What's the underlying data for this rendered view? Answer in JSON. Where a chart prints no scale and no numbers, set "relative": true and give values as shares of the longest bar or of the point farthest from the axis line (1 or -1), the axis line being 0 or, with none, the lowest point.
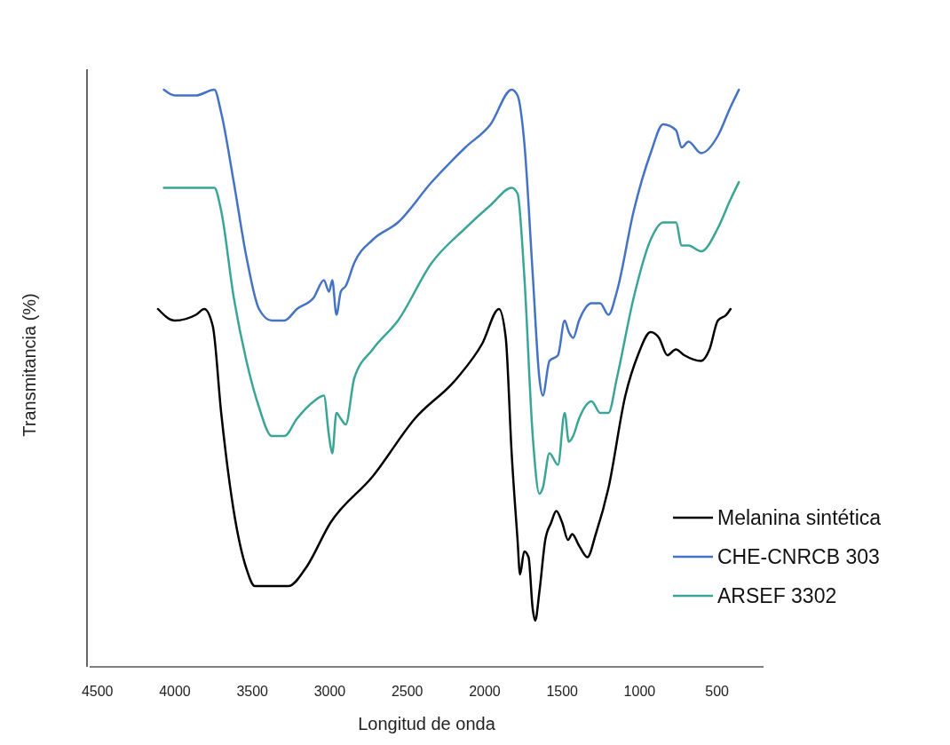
{
  "chart_data": {
    "type": "line",
    "xlabel": "Longitud de onda",
    "ylabel": "Transmitancia (%)",
    "relative": true,
    "xlim": [
      4550,
      200
    ],
    "xticks": [
      4500,
      4000,
      3500,
      3000,
      2500,
      2000,
      1500,
      1000,
      500
    ],
    "grid": false,
    "legend": "bottom right",
    "line_style": "solid",
    "marker": "none",
    "series": [
      {
        "name": "Melanina sintética",
        "color": "#000000",
        "x": [
          4109,
          4000,
          3864,
          3810,
          3755,
          3701,
          3620,
          3538,
          3484,
          3402,
          3321,
          3266,
          3158,
          2995,
          2723,
          2451,
          2179,
          2016,
          1908,
          1864,
          1826,
          1788,
          1772,
          1745,
          1717,
          1690,
          1674,
          1647,
          1609,
          1571,
          1538,
          1500,
          1462,
          1435,
          1391,
          1337,
          1283,
          1201,
          1092,
          1011,
          929,
          875,
          821,
          766,
          712,
          603,
          549,
          495,
          440,
          413
        ],
        "values": [
          0.62,
          0.6,
          0.61,
          0.62,
          0.59,
          0.44,
          0.27,
          0.17,
          0.14,
          0.14,
          0.14,
          0.14,
          0.17,
          0.25,
          0.33,
          0.43,
          0.5,
          0.56,
          0.62,
          0.57,
          0.37,
          0.22,
          0.16,
          0.2,
          0.19,
          0.1,
          0.08,
          0.13,
          0.22,
          0.25,
          0.27,
          0.25,
          0.22,
          0.23,
          0.21,
          0.19,
          0.23,
          0.31,
          0.47,
          0.54,
          0.58,
          0.57,
          0.54,
          0.55,
          0.54,
          0.53,
          0.55,
          0.6,
          0.61,
          0.62
        ]
      },
      {
        "name": "CHE-CNRCB 303",
        "color": "#4472c4",
        "x": [
          4071,
          4000,
          3864,
          3745,
          3701,
          3620,
          3538,
          3457,
          3375,
          3293,
          3212,
          3103,
          3038,
          3005,
          2984,
          2957,
          2929,
          2897,
          2842,
          2723,
          2560,
          2342,
          2125,
          1962,
          1826,
          1788,
          1745,
          1690,
          1647,
          1625,
          1582,
          1527,
          1484,
          1457,
          1429,
          1391,
          1310,
          1255,
          1201,
          1147,
          1038,
          929,
          848,
          766,
          728,
          685,
          603,
          495,
          413,
          359
        ],
        "values": [
          1,
          0.99,
          0.99,
          1,
          0.96,
          0.84,
          0.71,
          0.62,
          0.6,
          0.6,
          0.62,
          0.64,
          0.67,
          0.65,
          0.67,
          0.61,
          0.65,
          0.66,
          0.7,
          0.74,
          0.77,
          0.84,
          0.9,
          0.94,
          1,
          0.99,
          0.91,
          0.68,
          0.5,
          0.47,
          0.53,
          0.54,
          0.6,
          0.58,
          0.57,
          0.6,
          0.63,
          0.63,
          0.61,
          0.65,
          0.79,
          0.89,
          0.94,
          0.93,
          0.9,
          0.91,
          0.89,
          0.92,
          0.97,
          1
        ]
      },
      {
        "name": "ARSEF 3302",
        "color": "#3aa597",
        "x": [
          4071,
          4000,
          3864,
          3745,
          3701,
          3620,
          3538,
          3457,
          3375,
          3293,
          3212,
          3103,
          3038,
          3005,
          2984,
          2957,
          2929,
          2897,
          2842,
          2723,
          2560,
          2342,
          2125,
          1962,
          1826,
          1788,
          1745,
          1690,
          1647,
          1625,
          1582,
          1527,
          1484,
          1457,
          1429,
          1391,
          1310,
          1255,
          1201,
          1147,
          1038,
          929,
          848,
          766,
          728,
          685,
          603,
          495,
          413,
          359
        ],
        "values": [
          0.83,
          0.83,
          0.83,
          0.83,
          0.79,
          0.64,
          0.53,
          0.45,
          0.4,
          0.4,
          0.43,
          0.46,
          0.47,
          0.4,
          0.37,
          0.44,
          0.43,
          0.42,
          0.5,
          0.55,
          0.6,
          0.7,
          0.76,
          0.8,
          0.83,
          0.82,
          0.68,
          0.4,
          0.3,
          0.31,
          0.37,
          0.35,
          0.44,
          0.39,
          0.4,
          0.43,
          0.46,
          0.44,
          0.44,
          0.5,
          0.64,
          0.74,
          0.77,
          0.77,
          0.73,
          0.73,
          0.72,
          0.76,
          0.81,
          0.84
        ]
      }
    ]
  }
}
